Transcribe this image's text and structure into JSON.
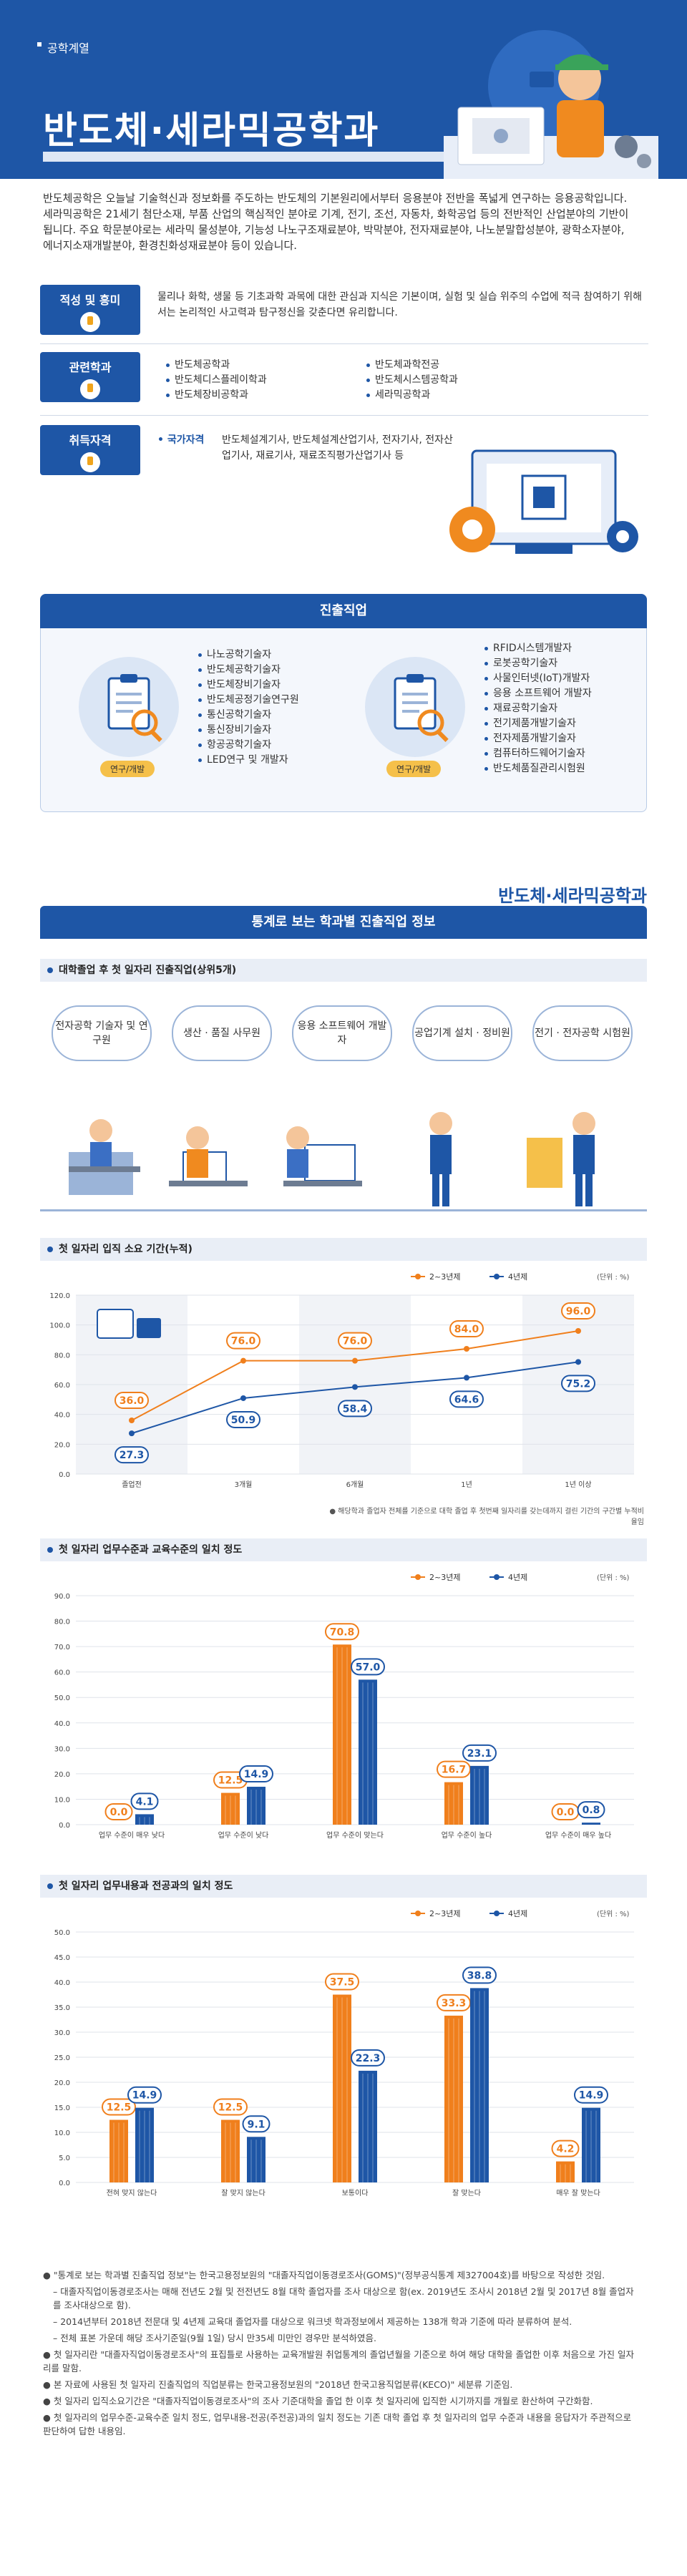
{
  "hero": {
    "category": "공학계열",
    "title": "반도체·세라믹공학과"
  },
  "intro": "반도체공학은 오늘날 기술혁신과 정보화를 주도하는 반도체의 기본원리에서부터 응용분야 전반을 폭넓게 연구하는 응용공학입니다. 세라믹공학은 21세기 첨단소재, 부품 산업의 핵심적인 분야로 기계, 전기, 조선, 자동차, 화학공업 등의 전반적인 산업분야의 기반이 됩니다. 주요 학문분야로는 세라믹 물성분야, 기능성 나노구조재료분야, 박막분야, 전자재료분야, 나노분말합성분야, 광학소자분야, 에너지소재개발분야, 환경친화성재료분야 등이 있습니다.",
  "aptitude": {
    "label": "적성 및 흥미",
    "text": "물리나 화학, 생물 등 기초과학 과목에 대한 관심과 지식은 기본이며, 실험 및 실습 위주의 수업에 적극 참여하기 위해서는 논리적인 사고력과 탐구정신을 갖춘다면 유리합니다."
  },
  "related": {
    "label": "관련학과",
    "col1": [
      "반도체공학과",
      "반도체디스플레이학과",
      "반도체장비공학과"
    ],
    "col2": [
      "반도체과학전공",
      "반도체시스템공학과",
      "세라믹공학과"
    ]
  },
  "license": {
    "label": "취득자격",
    "key": "국가자격",
    "text": "반도체설계기사, 반도체설계산업기사, 전자기사, 전자산업기사, 재료기사, 재료조직평가산업기사 등"
  },
  "career": {
    "title": "진출직업",
    "left_tag": "연구/개발",
    "left": [
      "나노공학기술자",
      "반도체공학기술자",
      "반도체장비기술자",
      "반도체공정기술연구원",
      "통신공학기술자",
      "통신장비기술자",
      "항공공학기술자",
      "LED연구 및 개발자"
    ],
    "right_tag": "연구/개발",
    "right": [
      "RFID시스템개발자",
      "로봇공학기술자",
      "사물인터넷(IoT)개발자",
      "응용 소프트웨어 개발자",
      "재료공학기술자",
      "전기제품개발기술자",
      "전자제품개발기술자",
      "컴퓨터하드웨어기술자",
      "반도체품질관리시험원"
    ]
  },
  "stats": {
    "dept_tag": "반도체·세라믹공학과",
    "title": "통계로 보는 학과별 진출직업 정보",
    "jobs_title": "대학졸업 후 첫 일자리 진출직업(상위5개)",
    "jobs": [
      "전자공학 기술자 및 연구원",
      "생산 · 품질 사무원",
      "응용 소프트웨어 개발자",
      "공업기계 설치 · 정비원",
      "전기 · 전자공학 시험원"
    ],
    "chart1_title": "첫 일자리 입직 소요 기간(누적)",
    "chart1_note": "● 해당학과 졸업자 전체를 기준으로 대학 졸업 후 첫번째 일자리를 갖는데까지 걸린 기간의 구간별 누적비율임",
    "chart2_title": "첫 일자리 업무수준과 교육수준의 일치 정도",
    "chart3_title": "첫 일자리 업무내용과 전공과의 일치 정도",
    "legend_a": "2~3년제",
    "legend_b": "4년제",
    "unit": "(단위 : %)"
  },
  "chart_data": [
    {
      "type": "line",
      "title": "첫 일자리 입직 소요 기간(누적)",
      "categories": [
        "졸업전",
        "3개월",
        "6개월",
        "1년",
        "1년 이상"
      ],
      "series": [
        {
          "name": "2~3년제",
          "values": [
            36.0,
            76.0,
            76.0,
            84.0,
            96.0
          ]
        },
        {
          "name": "4년제",
          "values": [
            27.3,
            50.9,
            58.4,
            64.6,
            75.2
          ]
        }
      ],
      "ylim": [
        0,
        120
      ],
      "yticks": [
        "0.0",
        "20.0",
        "40.0",
        "60.0",
        "80.0",
        "100.0",
        "120.0"
      ]
    },
    {
      "type": "bar",
      "title": "첫 일자리 업무수준과 교육수준의 일치 정도",
      "categories": [
        "업무 수준이 매우 낮다",
        "업무 수준이 낮다",
        "업무 수준이 맞는다",
        "업무 수준이 높다",
        "업무 수준이 매우 높다"
      ],
      "series": [
        {
          "name": "2~3년제",
          "values": [
            0.0,
            12.5,
            70.8,
            16.7,
            0.0
          ]
        },
        {
          "name": "4년제",
          "values": [
            4.1,
            14.9,
            57.0,
            23.1,
            0.8
          ]
        }
      ],
      "ylim": [
        0,
        90
      ],
      "yticks": [
        "0.0",
        "10.0",
        "20.0",
        "30.0",
        "40.0",
        "50.0",
        "60.0",
        "70.0",
        "80.0",
        "90.0"
      ]
    },
    {
      "type": "bar",
      "title": "첫 일자리 업무내용과 전공과의 일치 정도",
      "categories": [
        "전혀 맞지 않는다",
        "잘 맞지 않는다",
        "보통이다",
        "잘 맞는다",
        "매우 잘 맞는다"
      ],
      "series": [
        {
          "name": "2~3년제",
          "values": [
            12.5,
            12.5,
            37.5,
            33.3,
            4.2
          ]
        },
        {
          "name": "4년제",
          "values": [
            14.9,
            9.1,
            22.3,
            38.8,
            14.9
          ]
        }
      ],
      "ylim": [
        0,
        50
      ],
      "yticks": [
        "0.0",
        "5.0",
        "10.0",
        "15.0",
        "20.0",
        "25.0",
        "30.0",
        "35.0",
        "40.0",
        "45.0",
        "50.0"
      ]
    }
  ],
  "footnotes": [
    "\"통계로 보는 학과별 진출직업 정보\"는 한국고용정보원의 \"대졸자직업이동경로조사(GOMS)\"(정부공식통계 제327004호)를 바탕으로 작성한 것임.",
    "– 대졸자직업이동경로조사는 매해 전년도 2월 및 전전년도 8월 대학 졸업자를 조사 대상으로 함(ex. 2019년도 조사시 2018년 2월 및 2017년 8월 졸업자를 조사대상으로 함).",
    "– 2014년부터 2018년 전문대 및 4년제 교육대 졸업자를 대상으로 워크넷 학과정보에서 제공하는 138개 학과 기준에 따라 분류하여 분석.",
    "– 전체 표본 가운데 해당 조사기준일(9월 1일) 당시 만35세 미만인 경우만 분석하였음.",
    "첫 일자리란 \"대졸자직업이동경로조사\"의 표집틀로 사용하는 교육개발원 취업통계의 졸업년월을 기준으로 하여 해당 대학을 졸업한 이후 처음으로 가진 일자리를 말함.",
    "본 자료에 사용된 첫 일자리 진출직업의 직업분류는 한국고용정보원의 \"2018년 한국고용직업분류(KECO)\" 세분류 기준임.",
    "첫 일자리 입직소요기간은 \"대졸자직업이동경로조사\"의 조사 기준대학을 졸업 한 이후 첫 일자리에 입직한 시기까지를 개월로 환산하여 구간화함.",
    "첫 일자리의 업무수준-교육수준 일치 정도, 업무내용-전공(주전공)과의 일치 정도는 기존 대학 졸업 후 첫 일자리의 업무 수준과 내용을 응답자가 주관적으로 판단하여 답한 내용임."
  ],
  "colors": {
    "brand": "#1e56a6",
    "orange": "#f07f1c",
    "blue": "#1e56a6"
  }
}
